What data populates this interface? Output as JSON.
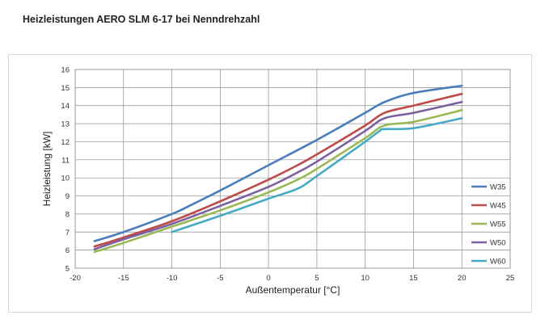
{
  "page": {
    "title": "Heizleistungen AERO SLM 6-17 bei Nenndrehzahl"
  },
  "chart_data": {
    "type": "line",
    "title": "",
    "xlabel": "Außentemperatur [°C]",
    "ylabel": "Heizleistung [kW]",
    "xlim": [
      -20,
      25
    ],
    "ylim": [
      5,
      16
    ],
    "xticks": [
      -20,
      -15,
      -10,
      -5,
      0,
      5,
      10,
      15,
      20,
      25
    ],
    "yticks": [
      5,
      6,
      7,
      8,
      9,
      10,
      11,
      12,
      13,
      14,
      15,
      16
    ],
    "grid": true,
    "legend": "right",
    "series": [
      {
        "name": "W35",
        "color": "#4a7ebb",
        "x": [
          -18,
          -15,
          -10,
          -8,
          -5,
          0,
          5,
          10,
          12,
          15,
          20
        ],
        "y": [
          6.5,
          7.0,
          8.0,
          8.5,
          9.3,
          10.7,
          12.1,
          13.6,
          14.2,
          14.7,
          15.1
        ]
      },
      {
        "name": "W45",
        "color": "#be4b48",
        "x": [
          -18,
          -15,
          -10,
          -5,
          0,
          3,
          5,
          10,
          12,
          15,
          20
        ],
        "y": [
          6.2,
          6.7,
          7.6,
          8.7,
          9.9,
          10.7,
          11.3,
          12.9,
          13.6,
          14.0,
          14.65
        ]
      },
      {
        "name": "W55",
        "color": "#98b954",
        "x": [
          -18,
          -15,
          -10,
          -5,
          0,
          3,
          5,
          10,
          12,
          15,
          20
        ],
        "y": [
          5.9,
          6.4,
          7.3,
          8.2,
          9.2,
          9.9,
          10.5,
          12.2,
          12.9,
          13.1,
          13.75
        ]
      },
      {
        "name": "W50",
        "color": "#7d60a0",
        "x": [
          -18,
          -15,
          -10,
          -5,
          0,
          3,
          5,
          10,
          12,
          15,
          20
        ],
        "y": [
          6.05,
          6.6,
          7.45,
          8.45,
          9.5,
          10.3,
          10.9,
          12.6,
          13.3,
          13.6,
          14.2
        ]
      },
      {
        "name": "W60",
        "color": "#46aac5",
        "x": [
          -10,
          -5,
          0,
          3,
          5,
          10,
          11.5,
          12,
          15,
          20
        ],
        "y": [
          7.0,
          7.9,
          8.85,
          9.4,
          10.1,
          12.0,
          12.6,
          12.7,
          12.75,
          13.3
        ]
      }
    ]
  }
}
